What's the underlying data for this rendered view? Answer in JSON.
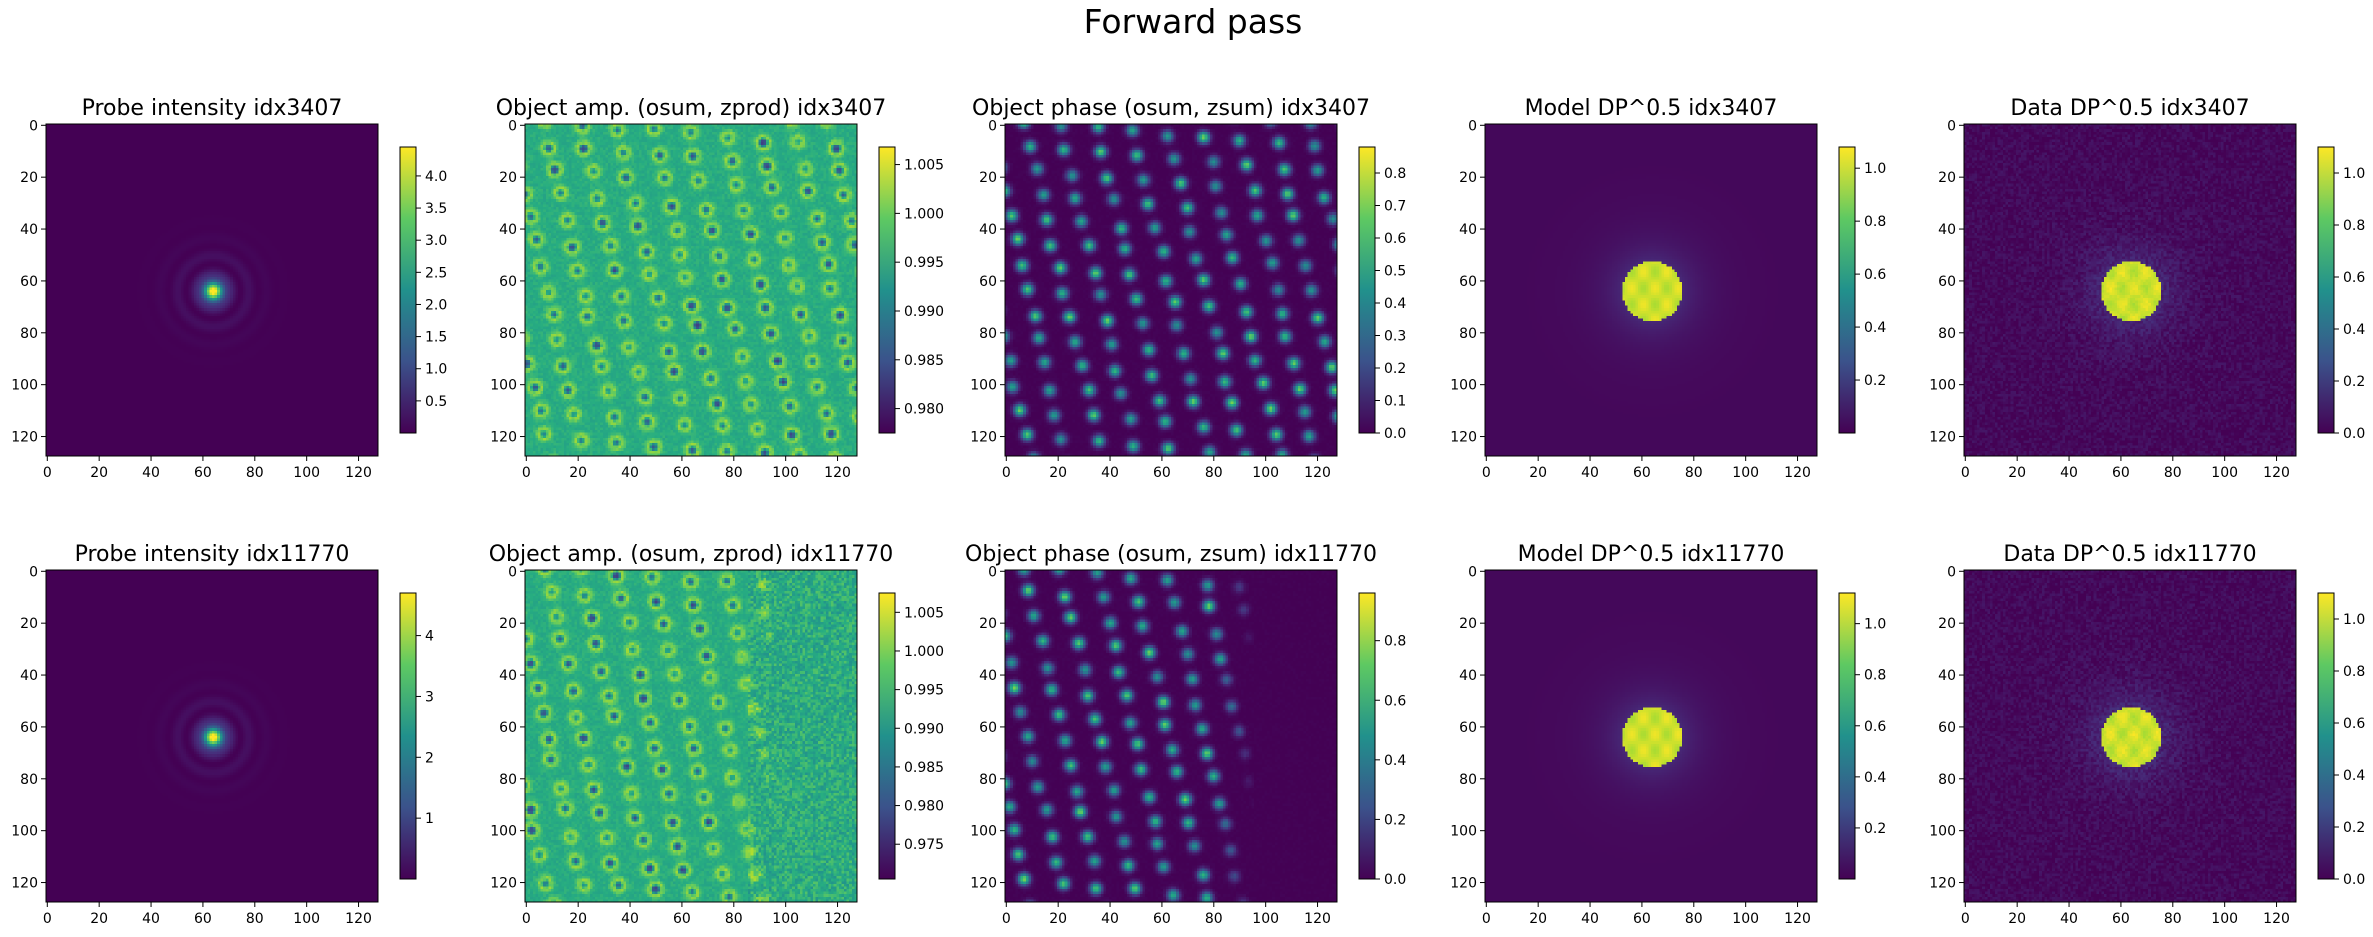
{
  "figure": {
    "title": "Forward pass"
  },
  "colormap": {
    "name": "viridis",
    "stops": [
      "#440154",
      "#3b528b",
      "#21918c",
      "#5ec962",
      "#fde725"
    ]
  },
  "chart_data": [
    {
      "type": "heatmap",
      "title": "Probe intensity idx3407",
      "content": "probe",
      "x_ticks": [
        0,
        20,
        40,
        60,
        80,
        100,
        120
      ],
      "y_ticks": [
        0,
        20,
        40,
        60,
        80,
        100,
        120
      ],
      "colorbar": {
        "min": 0.0,
        "max": 4.45,
        "ticks": [
          "0.5",
          "1.0",
          "1.5",
          "2.0",
          "2.5",
          "3.0",
          "3.5",
          "4.0"
        ]
      }
    },
    {
      "type": "heatmap",
      "title": "Object amp. (osum, zprod) idx3407",
      "content": "amplitude",
      "x_ticks": [
        0,
        20,
        40,
        60,
        80,
        100,
        120
      ],
      "y_ticks": [
        0,
        20,
        40,
        60,
        80,
        100,
        120
      ],
      "colorbar": {
        "min": 0.9775,
        "max": 1.0068,
        "ticks": [
          "0.980",
          "0.985",
          "0.990",
          "0.995",
          "1.000",
          "1.005"
        ]
      }
    },
    {
      "type": "heatmap",
      "title": "Object phase (osum, zsum) idx3407",
      "content": "phase",
      "x_ticks": [
        0,
        20,
        40,
        60,
        80,
        100,
        120
      ],
      "y_ticks": [
        0,
        20,
        40,
        60,
        80,
        100,
        120
      ],
      "colorbar": {
        "min": 0.0,
        "max": 0.88,
        "ticks": [
          "0.0",
          "0.1",
          "0.2",
          "0.3",
          "0.4",
          "0.5",
          "0.6",
          "0.7",
          "0.8"
        ]
      }
    },
    {
      "type": "heatmap",
      "title": "Model DP^0.5 idx3407",
      "content": "diffraction",
      "x_ticks": [
        0,
        20,
        40,
        60,
        80,
        100,
        120
      ],
      "y_ticks": [
        0,
        20,
        40,
        60,
        80,
        100,
        120
      ],
      "colorbar": {
        "min": 0.0,
        "max": 1.08,
        "ticks": [
          "0.2",
          "0.4",
          "0.6",
          "0.8",
          "1.0"
        ]
      }
    },
    {
      "type": "heatmap",
      "title": "Data DP^0.5 idx3407",
      "content": "diffraction_noisy",
      "x_ticks": [
        0,
        20,
        40,
        60,
        80,
        100,
        120
      ],
      "y_ticks": [
        0,
        20,
        40,
        60,
        80,
        100,
        120
      ],
      "colorbar": {
        "min": 0.0,
        "max": 1.1,
        "ticks": [
          "0.0",
          "0.2",
          "0.4",
          "0.6",
          "0.8",
          "1.0"
        ]
      }
    },
    {
      "type": "heatmap",
      "title": "Probe intensity idx11770",
      "content": "probe",
      "x_ticks": [
        0,
        20,
        40,
        60,
        80,
        100,
        120
      ],
      "y_ticks": [
        0,
        20,
        40,
        60,
        80,
        100,
        120
      ],
      "colorbar": {
        "min": 0.0,
        "max": 4.7,
        "ticks": [
          "1",
          "2",
          "3",
          "4"
        ]
      }
    },
    {
      "type": "heatmap",
      "title": "Object amp. (osum, zprod) idx11770",
      "content": "amplitude_half",
      "x_ticks": [
        0,
        20,
        40,
        60,
        80,
        100,
        120
      ],
      "y_ticks": [
        0,
        20,
        40,
        60,
        80,
        100,
        120
      ],
      "colorbar": {
        "min": 0.9705,
        "max": 1.0075,
        "ticks": [
          "0.975",
          "0.980",
          "0.985",
          "0.990",
          "0.995",
          "1.000",
          "1.005"
        ]
      }
    },
    {
      "type": "heatmap",
      "title": "Object phase (osum, zsum) idx11770",
      "content": "phase_half",
      "x_ticks": [
        0,
        20,
        40,
        60,
        80,
        100,
        120
      ],
      "y_ticks": [
        0,
        20,
        40,
        60,
        80,
        100,
        120
      ],
      "colorbar": {
        "min": 0.0,
        "max": 0.96,
        "ticks": [
          "0.0",
          "0.2",
          "0.4",
          "0.6",
          "0.8"
        ]
      }
    },
    {
      "type": "heatmap",
      "title": "Model DP^0.5 idx11770",
      "content": "diffraction",
      "x_ticks": [
        0,
        20,
        40,
        60,
        80,
        100,
        120
      ],
      "y_ticks": [
        0,
        20,
        40,
        60,
        80,
        100,
        120
      ],
      "colorbar": {
        "min": 0.0,
        "max": 1.12,
        "ticks": [
          "0.2",
          "0.4",
          "0.6",
          "0.8",
          "1.0"
        ]
      }
    },
    {
      "type": "heatmap",
      "title": "Data DP^0.5 idx11770",
      "content": "diffraction_noisy",
      "x_ticks": [
        0,
        20,
        40,
        60,
        80,
        100,
        120
      ],
      "y_ticks": [
        0,
        20,
        40,
        60,
        80,
        100,
        120
      ],
      "colorbar": {
        "min": 0.0,
        "max": 1.1,
        "ticks": [
          "0.0",
          "0.2",
          "0.4",
          "0.6",
          "0.8",
          "1.0"
        ]
      }
    }
  ]
}
